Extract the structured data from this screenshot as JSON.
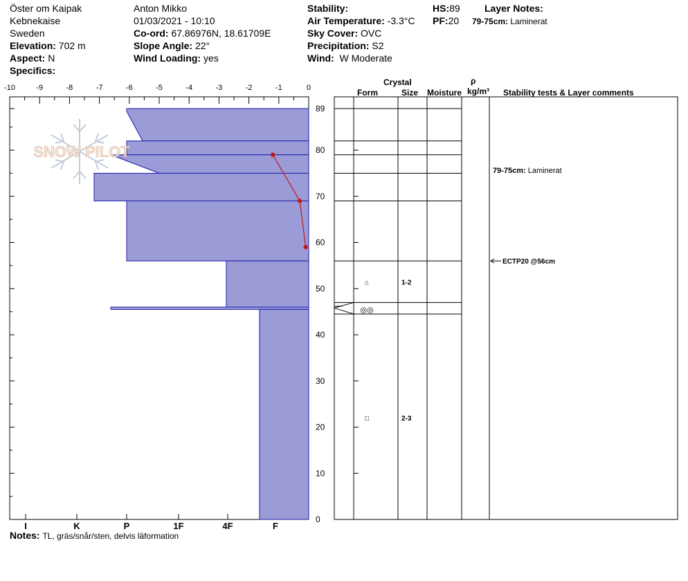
{
  "header": {
    "location": "Öster om Kaipak",
    "region": "Kebnekaise",
    "country": "Sweden",
    "elevation_label": "Elevation:",
    "elevation": "702 m",
    "aspect_label": "Aspect:",
    "aspect": "N",
    "specifics_label": "Specifics:",
    "specifics": "",
    "observer": "Anton Mikko",
    "datetime": "01/03/2021 - 10:10",
    "coord_label": "Co-ord:",
    "coord": "67.86976N, 18.61709E",
    "slope_label": "Slope Angle:",
    "slope": "22°",
    "wind_loading_label": "Wind Loading:",
    "wind_loading": "yes",
    "stability_label": "Stability:",
    "stability": "",
    "air_temp_label": "Air Temperature:",
    "air_temp": "-3.3°C",
    "sky_label": "Sky Cover:",
    "sky": "OVC",
    "precip_label": "Precipitation:",
    "precip": "S2",
    "wind_label": "Wind:",
    "wind": "W Moderate",
    "hs_label": "HS:",
    "hs": "89",
    "pf_label": "PF:",
    "pf": "20",
    "layer_notes_label": "Layer Notes:",
    "layer_note_range": "79-75cm:",
    "layer_note_text": "Laminerat"
  },
  "logo_text": "SNOW PILOT",
  "columns": {
    "crystal": "Crystal",
    "form": "Form",
    "size": "Size",
    "moisture": "Moisture",
    "rho": "ρ",
    "density_unit": "kg/m³",
    "comments": "Stability tests & Layer comments"
  },
  "chart_data": {
    "type": "snow-profile",
    "temp_axis": {
      "ticks": [
        "-10",
        "-9",
        "-8",
        "-7",
        "-6",
        "-5",
        "-4",
        "-3",
        "-2",
        "-1",
        "0"
      ],
      "range": [
        -10,
        0
      ]
    },
    "height_axis": {
      "ticks": [
        "0",
        "10",
        "20",
        "30",
        "40",
        "50",
        "60",
        "70",
        "80",
        "89"
      ],
      "range": [
        0,
        89
      ]
    },
    "hardness_axis": {
      "ticks": [
        "I",
        "K",
        "P",
        "1F",
        "4F",
        "F"
      ]
    },
    "hardness_profile": [
      {
        "top": 89,
        "bottom": 82,
        "hardness": "P"
      },
      {
        "top": 82,
        "bottom": 79,
        "hardness": "P"
      },
      {
        "top": 79,
        "bottom": 75,
        "hardness": "P+"
      },
      {
        "top": 75,
        "bottom": 69,
        "hardness": "K-"
      },
      {
        "top": 69,
        "bottom": 56,
        "hardness": "P"
      },
      {
        "top": 56,
        "bottom": 46,
        "hardness": "4F"
      },
      {
        "top": 46,
        "bottom": 45.5,
        "hardness": "P+"
      },
      {
        "top": 45.5,
        "bottom": 0,
        "hardness": "F+"
      }
    ],
    "temperature_profile": [
      {
        "height": 79,
        "temp": -1.2
      },
      {
        "height": 69,
        "temp": -0.3
      },
      {
        "height": 59,
        "temp": -0.1
      }
    ],
    "layer_boundaries": [
      89,
      82,
      79,
      75,
      69,
      56,
      47,
      44.5
    ],
    "crystals": [
      {
        "height": 51.5,
        "symbol": "⌂",
        "size": "1-2"
      },
      {
        "height": 45.5,
        "symbol": "◎◎",
        "size": ""
      },
      {
        "height": 22,
        "symbol": "□",
        "size": "2-3"
      }
    ],
    "comments": [
      {
        "height": 76,
        "label": "79-75cm:",
        "text": "Laminerat"
      },
      {
        "height": 56,
        "label": "ECTP20 @56cm",
        "text": ""
      }
    ]
  },
  "notes": {
    "label": "Notes:",
    "text": "TL, gräs/snår/sten, delvis läformation"
  }
}
